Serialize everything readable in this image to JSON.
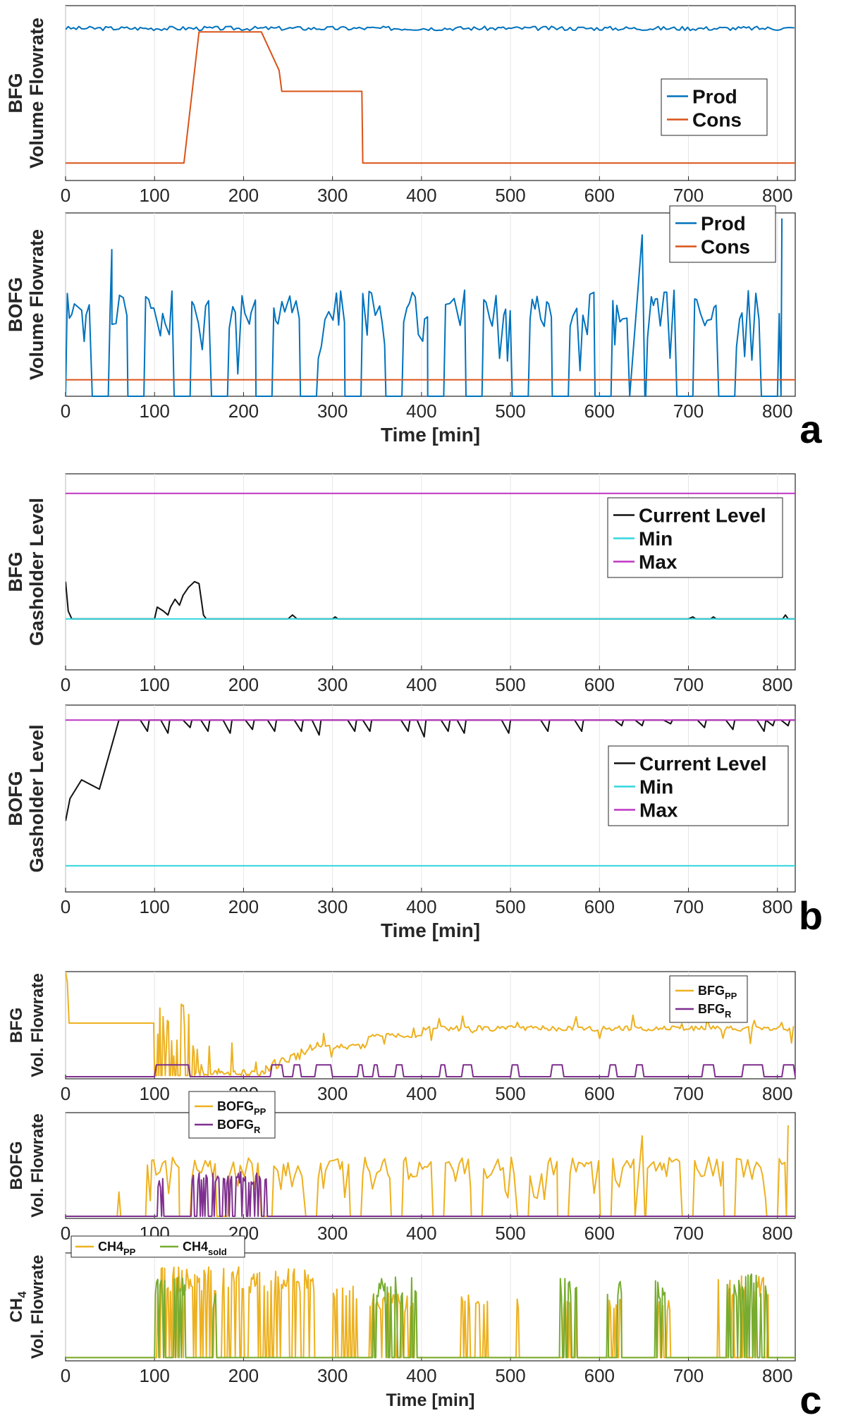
{
  "colors": {
    "prod": "#0072BD",
    "cons": "#D95319",
    "current": "#111111",
    "min": "#33D6DE",
    "max": "#BD35C4",
    "pp": "#EDB120",
    "r": "#7E2F8E",
    "sold": "#77AC30",
    "grid": "#e6e6e6",
    "axis": "#262626"
  },
  "panel_labels": [
    "a",
    "b",
    "c"
  ],
  "chart_data": [
    {
      "id": "a1",
      "type": "line",
      "panel": "a",
      "ylabel_line1": "BFG",
      "ylabel_line2": "Volume Flowrate",
      "xlabel": "",
      "xlim": [
        0,
        820
      ],
      "ylim": [
        0,
        1
      ],
      "xticks": [
        0,
        100,
        200,
        300,
        400,
        500,
        600,
        700,
        800
      ],
      "legend": {
        "position": "right",
        "entries": [
          "Prod",
          "Cons"
        ]
      },
      "series": [
        {
          "name": "Prod",
          "color_key": "prod",
          "gen": "noise",
          "base": 0.87,
          "amp": 0.012,
          "seed": 3
        },
        {
          "name": "Cons",
          "color_key": "cons",
          "gen": "points",
          "points": [
            [
              0,
              0.1
            ],
            [
              133,
              0.1
            ],
            [
              150,
              0.85
            ],
            [
              220,
              0.85
            ],
            [
              240,
              0.63
            ],
            [
              243,
              0.51
            ],
            [
              333,
              0.51
            ],
            [
              334,
              0.1
            ],
            [
              820,
              0.1
            ]
          ]
        }
      ]
    },
    {
      "id": "a2",
      "type": "line",
      "panel": "a",
      "ylabel_line1": "BOFG",
      "ylabel_line2": "Volume Flowrate",
      "xlabel": "Time [min]",
      "xlim": [
        0,
        820
      ],
      "ylim": [
        0,
        1
      ],
      "xticks": [
        0,
        100,
        200,
        300,
        400,
        500,
        600,
        700,
        800
      ],
      "legend": {
        "position": "top-right",
        "entries": [
          "Prod",
          "Cons"
        ]
      },
      "series": [
        {
          "name": "Prod",
          "color_key": "prod",
          "gen": "pulses",
          "seed": 11,
          "starts": [
            0,
            48,
            88,
            140,
            182,
            232,
            282,
            332,
            378,
            425,
            468,
            520,
            565,
            613,
            652,
            705,
            752,
            800
          ],
          "off_len": 18,
          "level_min": 0.38,
          "level_max": 0.58,
          "spikes": [
            [
              52,
              0.8
            ],
            [
              648,
              0.88
            ],
            [
              805,
              0.97
            ]
          ],
          "zero_until": 0
        },
        {
          "name": "Cons",
          "color_key": "cons",
          "gen": "points",
          "points": [
            [
              0,
              0.09
            ],
            [
              820,
              0.09
            ]
          ]
        }
      ]
    },
    {
      "id": "b1",
      "type": "line",
      "panel": "b",
      "ylabel_line1": "BFG",
      "ylabel_line2": "Gasholder Level",
      "xlabel": "",
      "xlim": [
        0,
        820
      ],
      "ylim": [
        0,
        1
      ],
      "xticks": [
        0,
        100,
        200,
        300,
        400,
        500,
        600,
        700,
        800
      ],
      "legend": {
        "position": "right",
        "entries": [
          "Current Level",
          "Min",
          "Max"
        ]
      },
      "series": [
        {
          "name": "Current Level",
          "color_key": "current",
          "gen": "points",
          "points": [
            [
              0,
              0.45
            ],
            [
              3,
              0.3
            ],
            [
              7,
              0.26
            ],
            [
              100,
              0.26
            ],
            [
              103,
              0.32
            ],
            [
              110,
              0.3
            ],
            [
              115,
              0.28
            ],
            [
              118,
              0.32
            ],
            [
              123,
              0.36
            ],
            [
              128,
              0.33
            ],
            [
              132,
              0.38
            ],
            [
              138,
              0.42
            ],
            [
              145,
              0.45
            ],
            [
              150,
              0.44
            ],
            [
              155,
              0.28
            ],
            [
              158,
              0.26
            ],
            [
              250,
              0.26
            ],
            [
              255,
              0.28
            ],
            [
              260,
              0.26
            ],
            [
              300,
              0.26
            ],
            [
              303,
              0.27
            ],
            [
              306,
              0.26
            ],
            [
              700,
              0.26
            ],
            [
              705,
              0.27
            ],
            [
              708,
              0.26
            ],
            [
              725,
              0.26
            ],
            [
              728,
              0.27
            ],
            [
              731,
              0.26
            ],
            [
              806,
              0.26
            ],
            [
              809,
              0.28
            ],
            [
              812,
              0.26
            ],
            [
              820,
              0.26
            ]
          ]
        },
        {
          "name": "Min",
          "color_key": "min",
          "gen": "points",
          "points": [
            [
              0,
              0.26
            ],
            [
              820,
              0.26
            ]
          ]
        },
        {
          "name": "Max",
          "color_key": "max",
          "gen": "points",
          "points": [
            [
              0,
              0.9
            ],
            [
              820,
              0.9
            ]
          ]
        }
      ]
    },
    {
      "id": "b2",
      "type": "line",
      "panel": "b",
      "ylabel_line1": "BOFG",
      "ylabel_line2": "Gasholder Level",
      "xlabel": "Time [min]",
      "xlim": [
        0,
        820
      ],
      "ylim": [
        0,
        1
      ],
      "xticks": [
        0,
        100,
        200,
        300,
        400,
        500,
        600,
        700,
        800
      ],
      "legend": {
        "position": "right",
        "entries": [
          "Current Level",
          "Min",
          "Max"
        ]
      },
      "series": [
        {
          "name": "Current Level",
          "color_key": "current",
          "gen": "sawtooth",
          "points": [
            [
              0,
              0.38
            ],
            [
              5,
              0.5
            ],
            [
              18,
              0.6
            ],
            [
              38,
              0.55
            ],
            [
              60,
              0.92
            ],
            [
              80,
              0.92
            ]
          ],
          "dips": [
            [
              92,
              0.86
            ],
            [
              115,
              0.85
            ],
            [
              140,
              0.88
            ],
            [
              160,
              0.86
            ],
            [
              185,
              0.85
            ],
            [
              210,
              0.87
            ],
            [
              235,
              0.86
            ],
            [
              265,
              0.86
            ],
            [
              285,
              0.84
            ],
            [
              325,
              0.86
            ],
            [
              342,
              0.86
            ],
            [
              385,
              0.86
            ],
            [
              403,
              0.83
            ],
            [
              430,
              0.86
            ],
            [
              448,
              0.85
            ],
            [
              498,
              0.85
            ],
            [
              542,
              0.86
            ],
            [
              580,
              0.86
            ],
            [
              625,
              0.89
            ],
            [
              648,
              0.89
            ],
            [
              680,
              0.9
            ],
            [
              718,
              0.88
            ],
            [
              750,
              0.87
            ],
            [
              785,
              0.86
            ],
            [
              795,
              0.89
            ],
            [
              812,
              0.89
            ]
          ],
          "top": 0.92
        },
        {
          "name": "Min",
          "color_key": "min",
          "gen": "points",
          "points": [
            [
              0,
              0.14
            ],
            [
              820,
              0.14
            ]
          ]
        },
        {
          "name": "Max",
          "color_key": "max",
          "gen": "points",
          "points": [
            [
              0,
              0.92
            ],
            [
              820,
              0.92
            ]
          ]
        }
      ]
    },
    {
      "id": "c1",
      "type": "line",
      "panel": "c",
      "ylabel_line1": "BFG",
      "ylabel_line2": "Vol. Flowrate",
      "xlabel": "",
      "xlim": [
        0,
        820
      ],
      "ylim": [
        0,
        1
      ],
      "xticks": [
        0,
        100,
        200,
        300,
        400,
        500,
        600,
        700,
        800
      ],
      "legend": {
        "position": "top-right",
        "entries": [
          {
            "main": "BFG",
            "sub": "PP"
          },
          {
            "main": "BFG",
            "sub": "R"
          }
        ]
      },
      "series": [
        {
          "name": "BFG_PP",
          "color_key": "pp",
          "gen": "bfgpp",
          "seed": 21
        },
        {
          "name": "BFG_R",
          "color_key": "r",
          "gen": "blocks",
          "base": 0.02,
          "high": 0.13,
          "blocks": [
            [
              100,
              140
            ],
            [
              230,
              245
            ],
            [
              255,
              265
            ],
            [
              280,
              300
            ],
            [
              328,
              335
            ],
            [
              345,
              352
            ],
            [
              370,
              380
            ],
            [
              420,
              428
            ],
            [
              445,
              458
            ],
            [
              500,
              510
            ],
            [
              545,
              560
            ],
            [
              610,
              620
            ],
            [
              640,
              650
            ],
            [
              715,
              730
            ],
            [
              760,
              785
            ],
            [
              805,
              820
            ]
          ]
        }
      ]
    },
    {
      "id": "c2",
      "type": "line",
      "panel": "c",
      "ylabel_line1": "BOFG",
      "ylabel_line2": "Vol. Flowrate",
      "xlabel": "",
      "xlim": [
        0,
        820
      ],
      "ylim": [
        0,
        1
      ],
      "xticks": [
        0,
        100,
        200,
        300,
        400,
        500,
        600,
        700,
        800
      ],
      "legend": {
        "position": "top-left",
        "entries": [
          {
            "main": "BOFG",
            "sub": "PP"
          },
          {
            "main": "BOFG",
            "sub": "R"
          }
        ]
      },
      "series": [
        {
          "name": "BOFG_PP",
          "color_key": "pp",
          "gen": "pulses",
          "seed": 31,
          "starts": [
            90,
            140,
            182,
            232,
            282,
            332,
            378,
            425,
            468,
            520,
            565,
            613,
            652,
            705,
            752,
            800
          ],
          "off_len": 12,
          "level_min": 0.38,
          "level_max": 0.58,
          "spikes": [
            [
              97,
              0.55
            ],
            [
              648,
              0.78
            ],
            [
              812,
              0.88
            ]
          ],
          "zero_until": 88,
          "base": 0.02,
          "extra": [
            [
              58,
              0.02
            ],
            [
              60,
              0.25
            ],
            [
              62,
              0.02
            ]
          ]
        },
        {
          "name": "BOFG_R",
          "color_key": "r",
          "gen": "dense",
          "seed": 41,
          "base": 0.02,
          "ranges": [
            [
              103,
              112,
              0.38
            ],
            [
              140,
              228,
              0.42
            ]
          ]
        }
      ]
    },
    {
      "id": "c3",
      "type": "line",
      "panel": "c",
      "ylabel_line1": "CH",
      "ylabel_sub": "4",
      "ylabel_line2": "Vol. Flowrate",
      "xlabel": "Time [min]",
      "xlim": [
        0,
        820
      ],
      "ylim": [
        0,
        1
      ],
      "xticks": [
        0,
        100,
        200,
        300,
        400,
        500,
        600,
        700,
        800
      ],
      "legend": {
        "position": "top-left",
        "orientation": "horizontal",
        "entries": [
          {
            "main": "CH4",
            "sub": "PP"
          },
          {
            "main": "CH4",
            "sub": "sold"
          }
        ]
      },
      "series": [
        {
          "name": "CH4_PP",
          "color_key": "pp",
          "gen": "dense",
          "seed": 51,
          "base": 0.03,
          "ranges": [
            [
              100,
              280,
              0.83
            ],
            [
              300,
              330,
              0.76
            ],
            [
              340,
              395,
              0.6
            ],
            [
              440,
              455,
              0.6
            ],
            [
              460,
              475,
              0.55
            ],
            [
              500,
              510,
              0.55
            ],
            [
              555,
              575,
              0.62
            ],
            [
              610,
              625,
              0.55
            ],
            [
              665,
              680,
              0.55
            ],
            [
              730,
              790,
              0.78
            ]
          ]
        },
        {
          "name": "CH4_sold",
          "color_key": "sold",
          "gen": "dense",
          "seed": 61,
          "base": 0.03,
          "ranges": [
            [
              100,
              112,
              0.8
            ],
            [
              120,
              135,
              0.75
            ],
            [
              165,
              172,
              0.6
            ],
            [
              345,
              395,
              0.78
            ],
            [
              555,
              575,
              0.75
            ],
            [
              608,
              625,
              0.7
            ],
            [
              662,
              678,
              0.72
            ],
            [
              740,
              790,
              0.78
            ]
          ]
        }
      ]
    }
  ]
}
